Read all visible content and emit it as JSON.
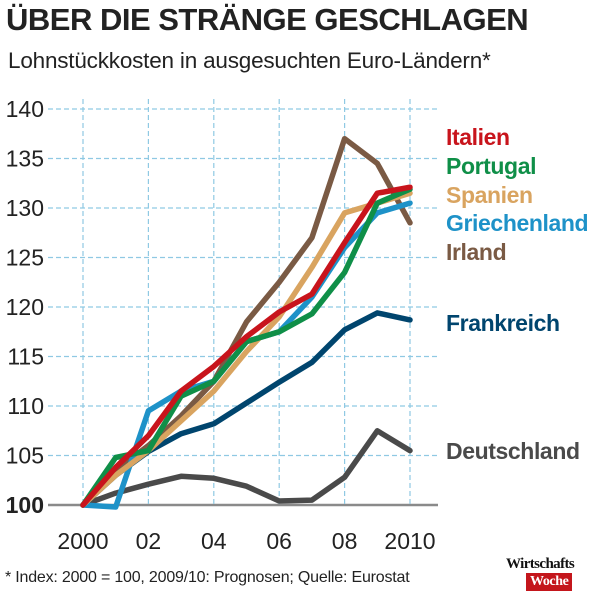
{
  "header": {
    "title": "ÜBER DIE STRÄNGE GESCHLAGEN",
    "subtitle": "Lohnstückkosten in ausgesuchten Euro-Ländern*"
  },
  "footnote": "* Index: 2000 = 100,  2009/10: Prognosen; Quelle: Eurostat",
  "logo": {
    "line1": "Wirtschafts",
    "line2": "Woche",
    "accent_color": "#c4161c"
  },
  "chart_data": {
    "type": "line",
    "title": "ÜBER DIE STRÄNGE GESCHLAGEN",
    "subtitle": "Lohnstückkosten in ausgesuchten Euro-Ländern*",
    "xlabel": "",
    "ylabel": "",
    "x": [
      2000,
      2001,
      2002,
      2003,
      2004,
      2005,
      2006,
      2007,
      2008,
      2009,
      2010
    ],
    "xlim": [
      2000,
      2010
    ],
    "ylim": [
      100,
      140
    ],
    "x_ticks": [
      2000,
      2002,
      2004,
      2006,
      2008,
      2010
    ],
    "x_tick_labels": [
      "2000",
      "02",
      "04",
      "06",
      "08",
      "2010"
    ],
    "y_ticks": [
      100,
      105,
      110,
      115,
      120,
      125,
      130,
      135,
      140
    ],
    "y_tick_labels": [
      "100",
      "105",
      "110",
      "115",
      "120",
      "125",
      "130",
      "135",
      "140"
    ],
    "grid": "dashed",
    "legend": "right",
    "series": [
      {
        "name": "Deutschland",
        "color": "#4a4a4a",
        "values": [
          100,
          101.2,
          102.1,
          102.9,
          102.7,
          101.9,
          100.4,
          100.5,
          102.8,
          107.5,
          105.5
        ]
      },
      {
        "name": "Frankreich",
        "color": "#00456e",
        "values": [
          100,
          103.0,
          105.4,
          107.2,
          108.2,
          110.3,
          112.4,
          114.4,
          117.7,
          119.4,
          118.7
        ]
      },
      {
        "name": "Irland",
        "color": "#7a5a44",
        "values": [
          100,
          103.5,
          106.0,
          109.0,
          112.5,
          118.5,
          122.5,
          127.0,
          137.0,
          134.5,
          128.5
        ]
      },
      {
        "name": "Griechenland",
        "color": "#1e92c8",
        "values": [
          100,
          99.8,
          109.5,
          111.5,
          112.5,
          116.5,
          117.5,
          121.0,
          126.0,
          129.5,
          130.5
        ]
      },
      {
        "name": "Spanien",
        "color": "#d9a460",
        "values": [
          100,
          103.0,
          105.5,
          108.5,
          111.5,
          115.5,
          119.0,
          124.0,
          129.5,
          130.5,
          131.5
        ]
      },
      {
        "name": "Portugal",
        "color": "#0f8f48",
        "values": [
          100,
          104.8,
          105.5,
          111.0,
          112.5,
          116.5,
          117.5,
          119.3,
          123.5,
          130.5,
          131.9
        ]
      },
      {
        "name": "Italien",
        "color": "#c8141c",
        "values": [
          100,
          103.8,
          107.0,
          111.5,
          114.0,
          117.0,
          119.5,
          121.3,
          126.5,
          131.5,
          132.1
        ]
      }
    ],
    "legend_entries": [
      {
        "name": "Italien",
        "color": "#c8141c"
      },
      {
        "name": "Portugal",
        "color": "#0f8f48"
      },
      {
        "name": "Spanien",
        "color": "#d9a460"
      },
      {
        "name": "Griechenland",
        "color": "#1e92c8"
      },
      {
        "name": "Irland",
        "color": "#7a5a44"
      },
      {
        "name": "Frankreich",
        "color": "#00456e"
      },
      {
        "name": "Deutschland",
        "color": "#4a4a4a"
      }
    ]
  }
}
